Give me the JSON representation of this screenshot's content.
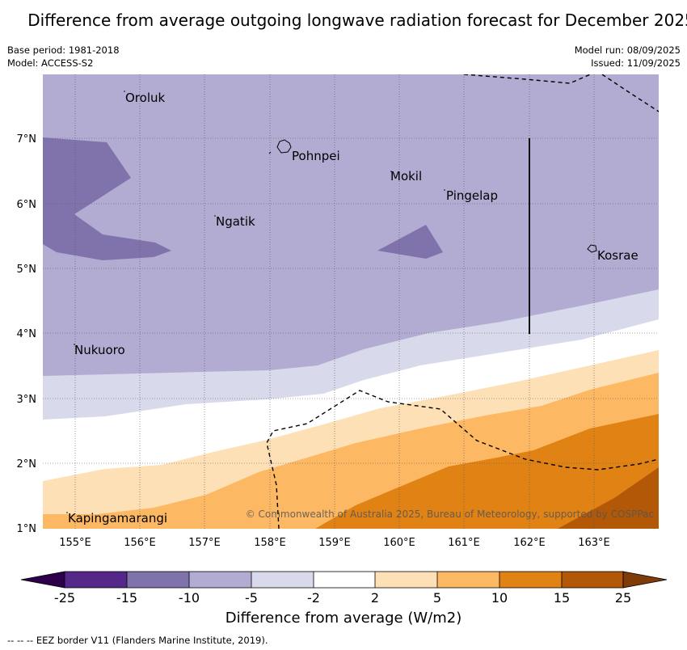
{
  "title": "Difference from average outgoing longwave radiation forecast for December 2025",
  "meta_left": [
    "Base period: 1981-2018",
    "Model: ACCESS-S2"
  ],
  "meta_right": [
    "Model run: 08/09/2025",
    "Issued: 11/09/2025"
  ],
  "copyright": "© Commonwealth of Australia 2025, Bureau of Meteorology, supported by COSPPac",
  "footer": "--  --  -- EEZ border V11 (Flanders Marine Institute, 2019).",
  "map": {
    "lon_ticks": [
      "155°E",
      "156°E",
      "157°E",
      "158°E",
      "159°E",
      "160°E",
      "161°E",
      "162°E",
      "163°E"
    ],
    "lat_ticks": [
      "7°N",
      "6°N",
      "5°N",
      "4°N",
      "3°N",
      "2°N",
      "1°N"
    ],
    "places": [
      {
        "name": "Oroluk"
      },
      {
        "name": "Pohnpei"
      },
      {
        "name": "Mokil"
      },
      {
        "name": "Pingelap"
      },
      {
        "name": "Ngatik"
      },
      {
        "name": "Kosrae"
      },
      {
        "name": "Nukuoro"
      },
      {
        "name": "Kapingamarangi"
      }
    ]
  },
  "colorbar": {
    "title": "Difference from average (W/m2)",
    "tick_labels": [
      "-25",
      "-15",
      "-10",
      "-5",
      "-2",
      "2",
      "5",
      "10",
      "15",
      "25"
    ],
    "colors": [
      "#542788",
      "#8073ac",
      "#b2abd2",
      "#d8daeb",
      "#ffffff",
      "#fee0b6",
      "#fdb863",
      "#e08214",
      "#b35806"
    ],
    "extend_low": "#2d004b",
    "extend_high": "#7f3b08"
  },
  "legend_colors": {
    "purple_dark": "#8073ac",
    "purple_light": "#b2abd2",
    "lavender": "#d8daeb",
    "white": "#ffffff",
    "peach": "#fee0b6",
    "light_orange": "#fdb863",
    "orange": "#e08214",
    "brown": "#b35806"
  }
}
